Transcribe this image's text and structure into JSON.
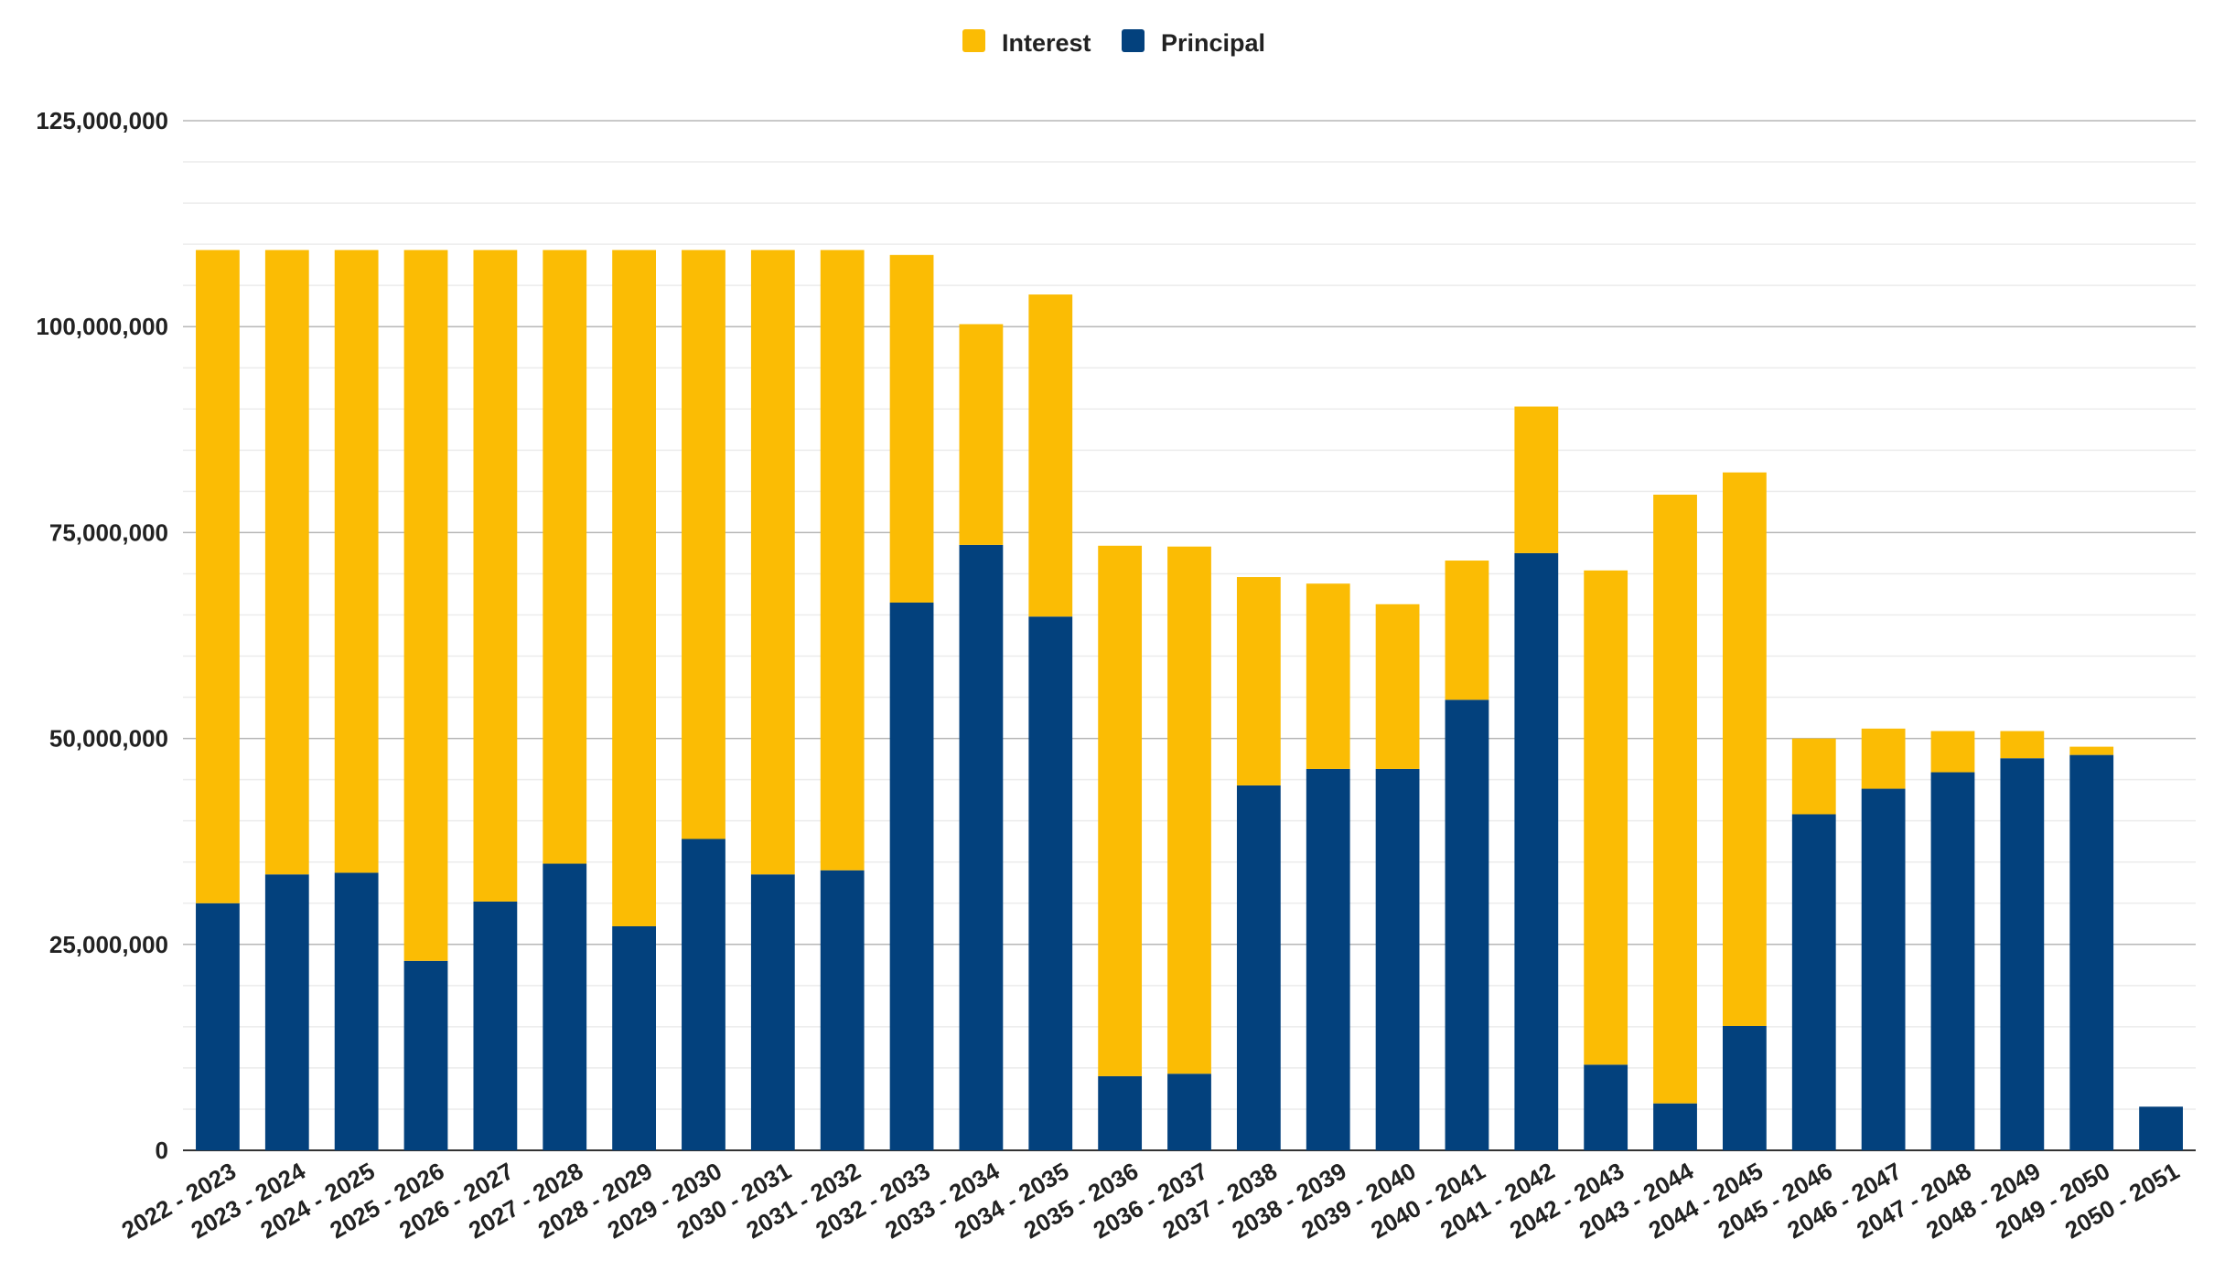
{
  "chart_data": {
    "type": "bar",
    "stacked": true,
    "categories": [
      "2022 - 2023",
      "2023 - 2024",
      "2024 - 2025",
      "2025 - 2026",
      "2026 - 2027",
      "2027 - 2028",
      "2028 - 2029",
      "2029 - 2030",
      "2030 - 2031",
      "2031 - 2032",
      "2032 - 2033",
      "2033 - 2034",
      "2034 - 2035",
      "2035 - 2036",
      "2036 - 2037",
      "2037 - 2038",
      "2038 - 2039",
      "2039 - 2040",
      "2040 - 2041",
      "2041 - 2042",
      "2042 - 2043",
      "2043 - 2044",
      "2044 - 2045",
      "2045 - 2046",
      "2046 - 2047",
      "2047 - 2048",
      "2048 - 2049",
      "2049 - 2050",
      "2050 - 2051"
    ],
    "series": [
      {
        "name": "Principal",
        "color": "#03417d",
        "values": [
          30000000,
          33500000,
          33700000,
          23000000,
          30200000,
          34800000,
          27200000,
          37800000,
          33500000,
          34000000,
          66500000,
          73500000,
          64800000,
          9000000,
          9300000,
          44300000,
          46300000,
          46300000,
          54700000,
          72500000,
          10400000,
          5700000,
          15100000,
          40800000,
          43900000,
          45900000,
          47600000,
          48000000,
          5300000
        ]
      },
      {
        "name": "Interest",
        "color": "#fbbc04",
        "values": [
          79300000,
          75800000,
          75600000,
          86300000,
          79100000,
          74500000,
          82100000,
          71500000,
          75800000,
          75300000,
          42200000,
          26800000,
          39100000,
          64400000,
          64000000,
          25300000,
          22500000,
          20000000,
          16900000,
          17800000,
          60000000,
          73900000,
          67200000,
          9200000,
          7300000,
          5000000,
          3300000,
          1000000,
          0
        ]
      }
    ],
    "legend": [
      "Interest",
      "Principal"
    ],
    "legend_position": "top",
    "yticks": [
      "0",
      "25,000,000",
      "50,000,000",
      "75,000,000",
      "100,000,000",
      "125,000,000"
    ],
    "ylim": [
      0,
      125000000
    ],
    "grid": true,
    "xlabel": "",
    "ylabel": ""
  }
}
